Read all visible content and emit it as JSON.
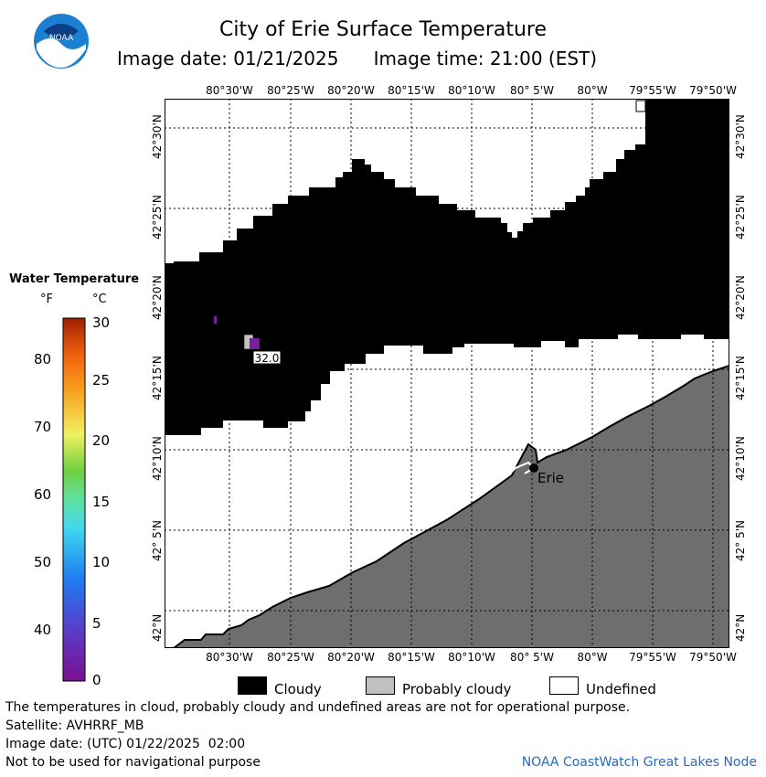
{
  "header": {
    "title": "City of Erie Surface Temperature",
    "image_date_label": "Image date: 01/21/2025",
    "image_time_label": "Image time: 21:00 (EST)"
  },
  "logo": {
    "text": "NOAA"
  },
  "map": {
    "lon_labels": [
      "80°30'W",
      "80°25'W",
      "80°20'W",
      "80°15'W",
      "80°10'W",
      "80° 5'W",
      "80°W",
      "79°55'W",
      "79°50'W"
    ],
    "lat_labels": [
      "42°30'N",
      "42°25'N",
      "42°20'N",
      "42°15'N",
      "42°10'N",
      "42° 5'N",
      "42°N"
    ],
    "city_label": "Erie",
    "point_value": "32.0"
  },
  "colors": {
    "cloudy": "#000000",
    "probably_cloudy": "#c0c0c0",
    "undefined": "#ffffff",
    "land": "#6e6e6e",
    "grid": "#000000"
  },
  "scale": {
    "title": "Water Temperature",
    "unit_f": "°F",
    "unit_c": "°C",
    "f_ticks": [
      "80",
      "70",
      "60",
      "50",
      "40"
    ],
    "c_ticks": [
      "30",
      "25",
      "20",
      "15",
      "10",
      "5",
      "0"
    ]
  },
  "legend": {
    "cloudy": "Cloudy",
    "probably_cloudy": "Probably cloudy",
    "undefined": "Undefined"
  },
  "footer": {
    "note": "The temperatures in cloud, probably cloudy and undefined areas are not for operational purpose.",
    "satellite": "Satellite: AVHRRF_MB",
    "image_date_utc": "Image date: (UTC) 01/22/2025  02:00",
    "nav_warning": "Not to be used for navigational purpose",
    "credit": "NOAA CoastWatch Great Lakes Node"
  }
}
